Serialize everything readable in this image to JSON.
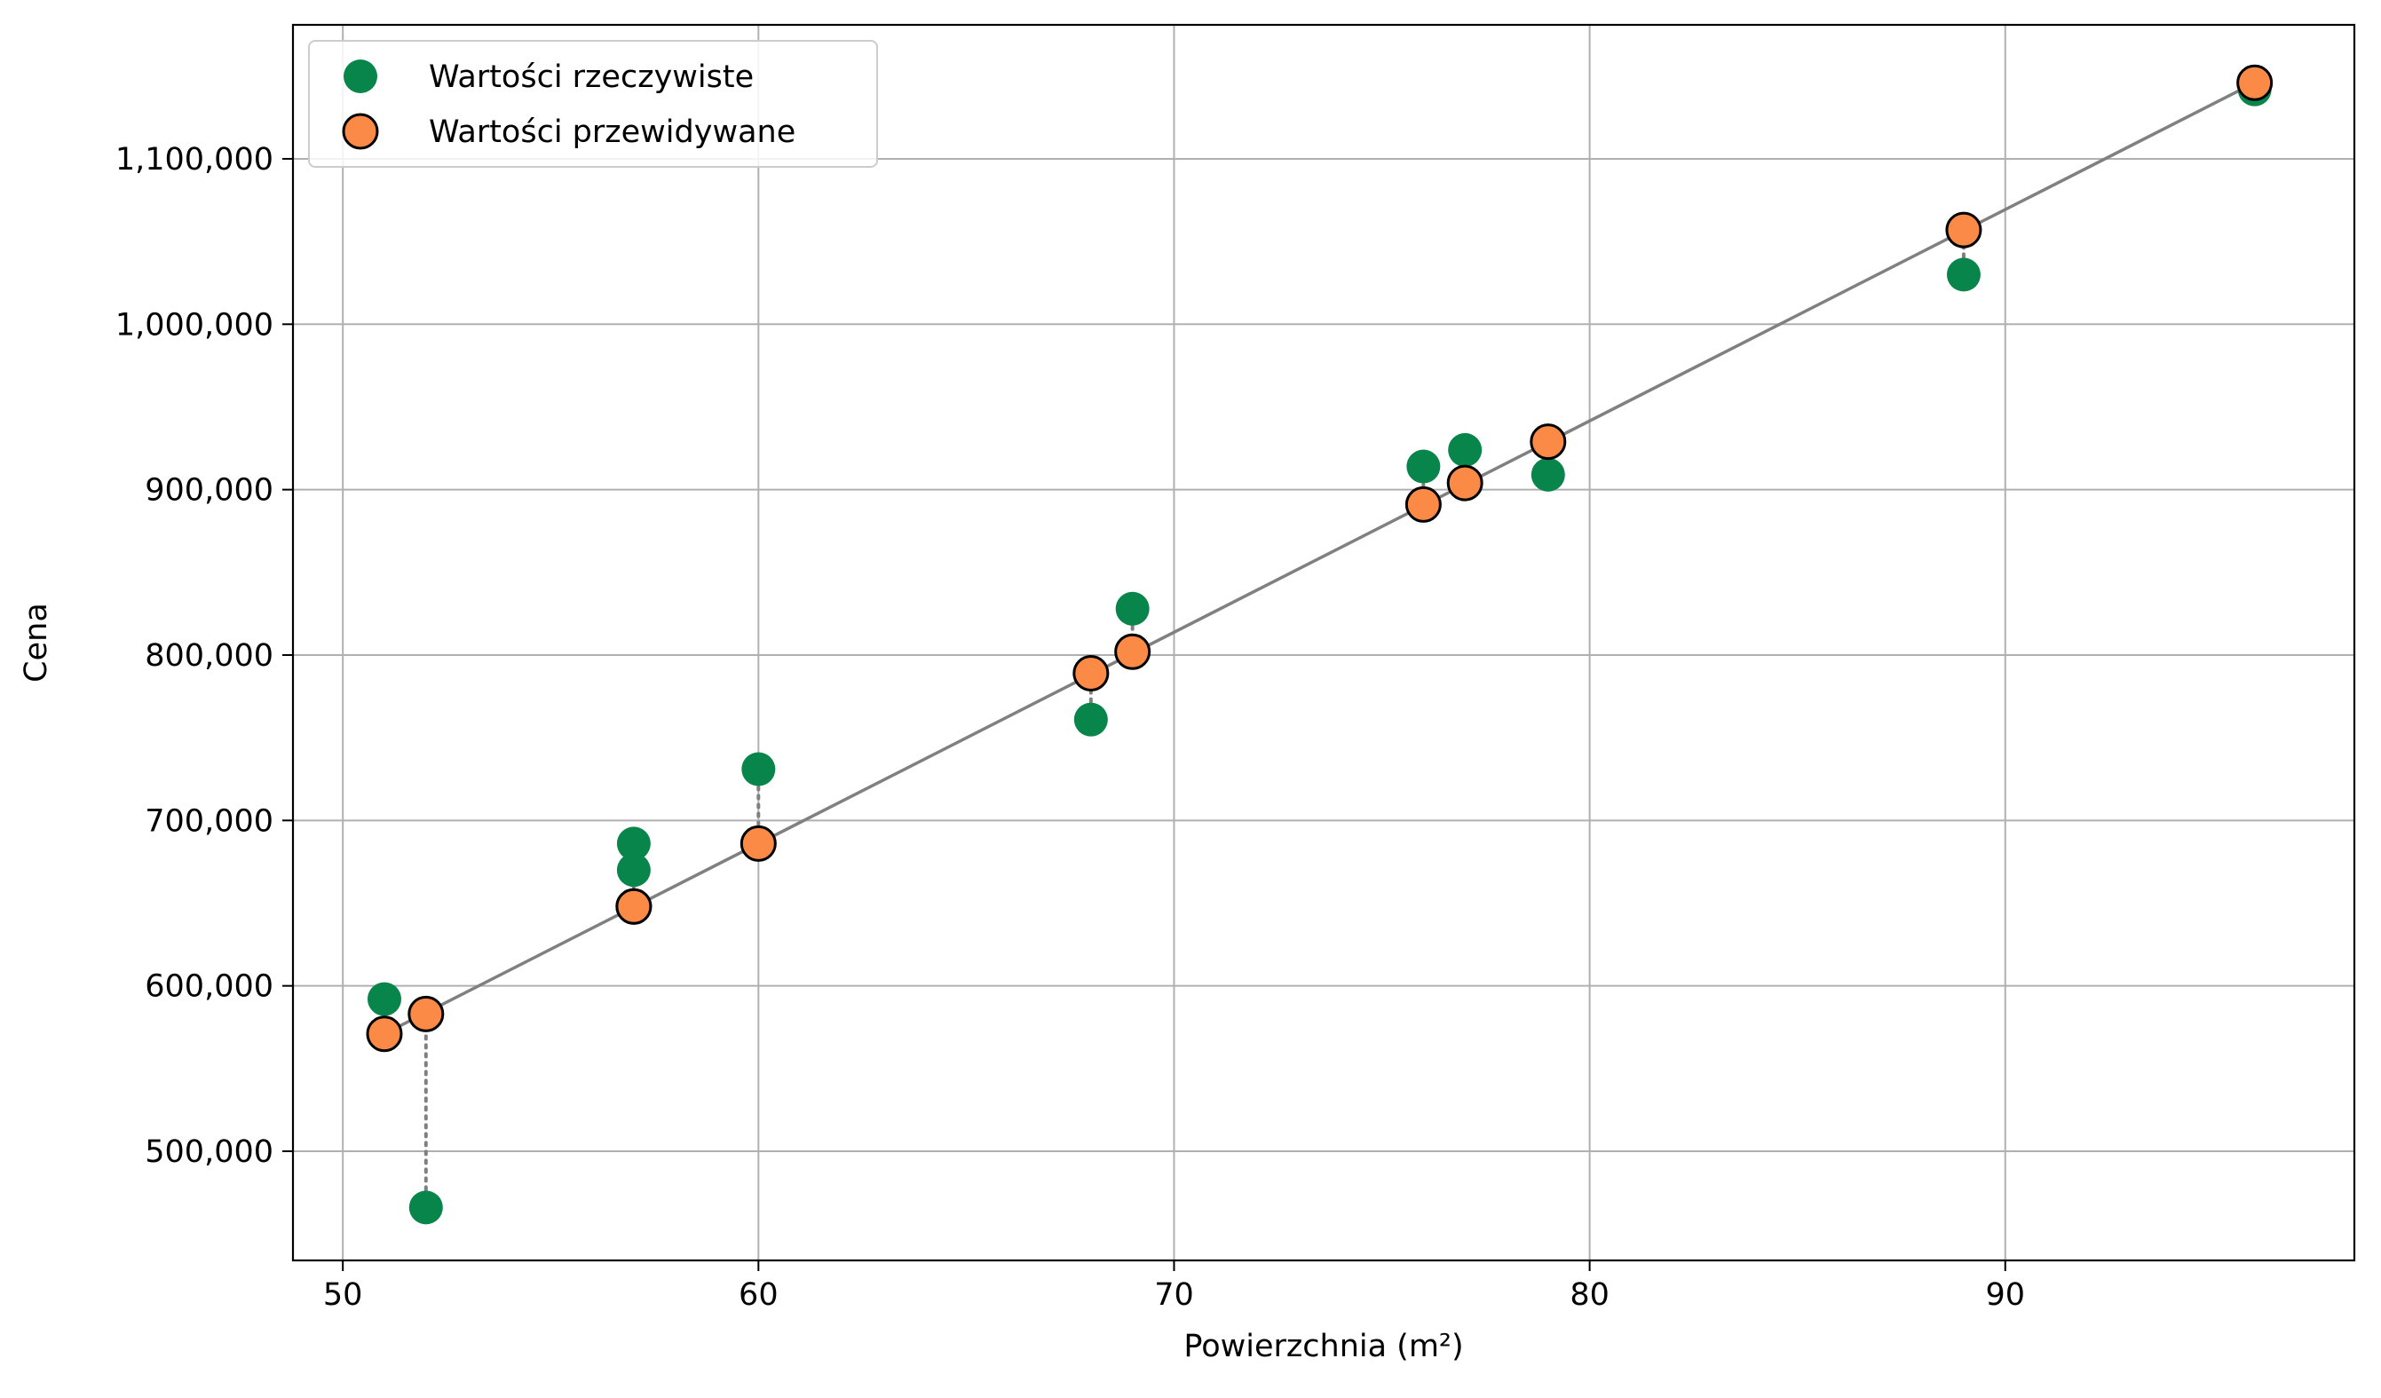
{
  "chart_data": {
    "type": "scatter",
    "title": "",
    "xlabel": "Powierzchnia (m²)",
    "ylabel": "Cena",
    "xlim": [
      48.8,
      98.4
    ],
    "ylim": [
      434000,
      1181000
    ],
    "grid": true,
    "legend_placement": "top-left",
    "x_ticks": [
      50,
      60,
      70,
      80,
      90
    ],
    "x_tick_labels": [
      "50",
      "60",
      "70",
      "80",
      "90"
    ],
    "y_ticks": [
      500000,
      600000,
      700000,
      800000,
      900000,
      1000000,
      1100000
    ],
    "y_tick_labels": [
      "500,000",
      "600,000",
      "700,000",
      "800,000",
      "900,000",
      "1,000,000",
      "1,100,000"
    ],
    "series": [
      {
        "name": "Wartości rzeczywiste",
        "color": "#07854a",
        "x": [
          51,
          52,
          57,
          57,
          60,
          68,
          69,
          76,
          77,
          79,
          89,
          96
        ],
        "y": [
          592000,
          466000,
          686000,
          670000,
          731000,
          761000,
          828000,
          914000,
          924000,
          909000,
          1030000,
          1142000
        ]
      },
      {
        "name": "Wartości przewidywane",
        "color": "#fb8a47",
        "edge_color": "#000000",
        "x": [
          51,
          52,
          57,
          57,
          60,
          68,
          69,
          76,
          77,
          79,
          89,
          96
        ],
        "y": [
          571000,
          583000,
          648000,
          648000,
          686000,
          789000,
          802000,
          891000,
          904000,
          929000,
          1057000,
          1146000
        ]
      }
    ],
    "regression_line": {
      "color": "#808080",
      "x": [
        51,
        96
      ],
      "y": [
        571000,
        1146000
      ]
    },
    "residual_style": "dotted",
    "residual_color": "#808080"
  }
}
